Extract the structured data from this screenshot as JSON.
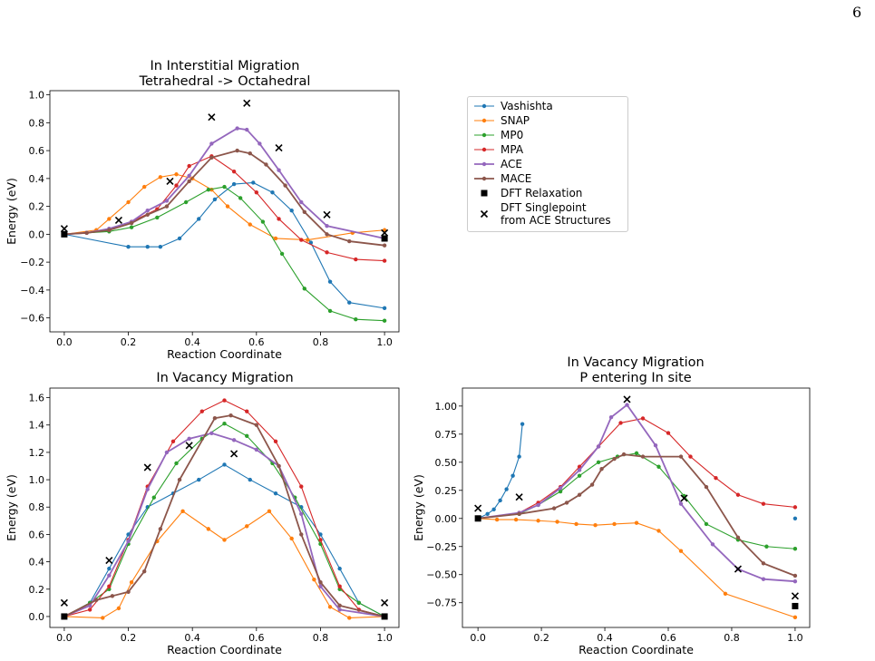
{
  "page_number": "6",
  "chart_data": [
    {
      "type": "line",
      "title": "In Interstitial Migration\nTetrahedral -> Octahedral",
      "xlabel": "Reaction Coordinate",
      "ylabel": "Energy (eV)",
      "xlim": [
        -0.045,
        1.045
      ],
      "ylim": [
        -0.7,
        1.03
      ],
      "xticks": [
        {
          "value": 0,
          "label": "0.0"
        },
        0.2,
        0.4,
        0.6,
        0.8,
        {
          "value": 1,
          "label": "1.0"
        }
      ],
      "yticks": [
        {
          "value": -0.6,
          "label": "−0.6"
        },
        {
          "value": -0.4,
          "label": "−0.4"
        },
        {
          "value": -0.2,
          "label": "−0.2"
        },
        {
          "value": 0,
          "label": "0.0"
        },
        0.2,
        0.4,
        0.6,
        0.8,
        {
          "value": 1,
          "label": "1.0"
        }
      ],
      "legend": "outside right",
      "series": [
        {
          "name": "Vashishta",
          "color": "#1f77b4",
          "marker": "dot",
          "x": [
            0,
            0.2,
            0.26,
            0.3,
            0.36,
            0.42,
            0.47,
            0.53,
            0.59,
            0.65,
            0.71,
            0.77,
            0.83,
            0.89,
            1.0
          ],
          "values": [
            0,
            -0.09,
            -0.09,
            -0.09,
            -0.03,
            0.11,
            0.25,
            0.36,
            0.37,
            0.3,
            0.17,
            -0.06,
            -0.34,
            -0.49,
            -0.53
          ]
        },
        {
          "name": "SNAP",
          "color": "#ff7f0e",
          "marker": "dot",
          "x": [
            0,
            0.1,
            0.14,
            0.2,
            0.25,
            0.3,
            0.35,
            0.4,
            0.46,
            0.51,
            0.58,
            0.66,
            0.76,
            0.9,
            1.0
          ],
          "values": [
            0,
            0.03,
            0.11,
            0.23,
            0.34,
            0.41,
            0.43,
            0.4,
            0.32,
            0.2,
            0.07,
            -0.03,
            -0.04,
            0.01,
            0.03
          ]
        },
        {
          "name": "MP0",
          "color": "#2ca02c",
          "marker": "dot",
          "x": [
            0,
            0.07,
            0.14,
            0.21,
            0.29,
            0.38,
            0.45,
            0.5,
            0.55,
            0.62,
            0.68,
            0.75,
            0.83,
            0.91,
            1.0
          ],
          "values": [
            0,
            0.01,
            0.02,
            0.05,
            0.12,
            0.23,
            0.32,
            0.34,
            0.26,
            0.09,
            -0.14,
            -0.39,
            -0.55,
            -0.61,
            -0.62
          ]
        },
        {
          "name": "MPA",
          "color": "#d62728",
          "marker": "dot",
          "x": [
            0,
            0.07,
            0.14,
            0.21,
            0.29,
            0.35,
            0.39,
            0.46,
            0.53,
            0.6,
            0.67,
            0.74,
            0.82,
            0.91,
            1.0
          ],
          "values": [
            0,
            0.01,
            0.03,
            0.09,
            0.18,
            0.35,
            0.49,
            0.56,
            0.45,
            0.3,
            0.11,
            -0.04,
            -0.13,
            -0.18,
            -0.19
          ]
        },
        {
          "name": "ACE",
          "color": "#9467bd",
          "marker": "dot",
          "linewidth": 1.8,
          "x": [
            0,
            0.07,
            0.14,
            0.21,
            0.26,
            0.32,
            0.39,
            0.46,
            0.54,
            0.57,
            0.61,
            0.67,
            0.74,
            0.82,
            1.0
          ],
          "values": [
            0,
            0.01,
            0.04,
            0.09,
            0.17,
            0.24,
            0.42,
            0.65,
            0.76,
            0.75,
            0.65,
            0.46,
            0.23,
            0.06,
            -0.03
          ]
        },
        {
          "name": "MACE",
          "color": "#8c564b",
          "marker": "dot",
          "linewidth": 1.8,
          "x": [
            0,
            0.07,
            0.14,
            0.21,
            0.26,
            0.32,
            0.39,
            0.46,
            0.54,
            0.58,
            0.63,
            0.69,
            0.75,
            0.82,
            0.89,
            1.0
          ],
          "values": [
            0,
            0.01,
            0.03,
            0.08,
            0.14,
            0.2,
            0.38,
            0.55,
            0.6,
            0.58,
            0.5,
            0.35,
            0.16,
            0.0,
            -0.05,
            -0.08
          ]
        },
        {
          "name": "DFT Relaxation",
          "color": "#000000",
          "marker": "square",
          "x": [
            0,
            1.0
          ],
          "values": [
            0,
            -0.03
          ]
        },
        {
          "name": "DFT Singlepoint\nfrom ACE Structures",
          "color": "#000000",
          "marker": "x",
          "x": [
            0,
            0.17,
            0.33,
            0.46,
            0.57,
            0.67,
            0.82,
            1.0
          ],
          "values": [
            0.04,
            0.1,
            0.38,
            0.84,
            0.94,
            0.62,
            0.14,
            0.01
          ]
        }
      ]
    },
    {
      "type": "line",
      "title": "In Vacancy Migration",
      "xlabel": "Reaction Coordinate",
      "ylabel": "Energy (eV)",
      "xlim": [
        -0.045,
        1.045
      ],
      "ylim": [
        -0.08,
        1.67
      ],
      "xticks": [
        {
          "value": 0,
          "label": "0.0"
        },
        0.2,
        0.4,
        0.6,
        0.8,
        {
          "value": 1,
          "label": "1.0"
        }
      ],
      "yticks": [
        {
          "value": 0,
          "label": "0.0"
        },
        0.2,
        0.4,
        0.6,
        0.8,
        {
          "value": 1,
          "label": "1.0"
        },
        1.2,
        1.4,
        1.6
      ],
      "series": [
        {
          "name": "Vashishta",
          "color": "#1f77b4",
          "marker": "dot",
          "x": [
            0,
            0.08,
            0.14,
            0.2,
            0.26,
            0.34,
            0.42,
            0.5,
            0.58,
            0.66,
            0.74,
            0.8,
            0.86,
            0.92,
            1.0
          ],
          "values": [
            0,
            0.1,
            0.35,
            0.6,
            0.8,
            0.9,
            1.0,
            1.11,
            1.0,
            0.9,
            0.8,
            0.6,
            0.35,
            0.1,
            0
          ]
        },
        {
          "name": "SNAP",
          "color": "#ff7f0e",
          "marker": "dot",
          "x": [
            0,
            0.12,
            0.17,
            0.21,
            0.29,
            0.37,
            0.45,
            0.5,
            0.57,
            0.64,
            0.71,
            0.78,
            0.83,
            0.89,
            1.0
          ],
          "values": [
            0,
            -0.01,
            0.06,
            0.25,
            0.55,
            0.77,
            0.64,
            0.56,
            0.66,
            0.77,
            0.57,
            0.27,
            0.07,
            -0.01,
            0
          ]
        },
        {
          "name": "MP0",
          "color": "#2ca02c",
          "marker": "dot",
          "x": [
            0,
            0.08,
            0.14,
            0.2,
            0.28,
            0.35,
            0.43,
            0.5,
            0.57,
            0.65,
            0.72,
            0.8,
            0.86,
            0.92,
            1.0
          ],
          "values": [
            0,
            0.1,
            0.2,
            0.53,
            0.87,
            1.12,
            1.3,
            1.41,
            1.32,
            1.12,
            0.87,
            0.53,
            0.2,
            0.1,
            0
          ]
        },
        {
          "name": "MPA",
          "color": "#d62728",
          "marker": "dot",
          "x": [
            0,
            0.08,
            0.14,
            0.2,
            0.26,
            0.34,
            0.43,
            0.5,
            0.57,
            0.66,
            0.74,
            0.8,
            0.86,
            0.92,
            1.0
          ],
          "values": [
            0,
            0.05,
            0.22,
            0.56,
            0.95,
            1.28,
            1.5,
            1.58,
            1.5,
            1.28,
            0.95,
            0.56,
            0.22,
            0.05,
            0
          ]
        },
        {
          "name": "ACE",
          "color": "#9467bd",
          "marker": "dot",
          "linewidth": 1.8,
          "x": [
            0,
            0.08,
            0.14,
            0.2,
            0.26,
            0.32,
            0.39,
            0.46,
            0.53,
            0.6,
            0.67,
            0.74,
            0.8,
            0.86,
            1.0
          ],
          "values": [
            0,
            0.08,
            0.3,
            0.55,
            0.93,
            1.2,
            1.3,
            1.34,
            1.29,
            1.22,
            1.1,
            0.75,
            0.22,
            0.05,
            0
          ]
        },
        {
          "name": "MACE",
          "color": "#8c564b",
          "marker": "dot",
          "linewidth": 1.8,
          "x": [
            0,
            0.1,
            0.15,
            0.2,
            0.25,
            0.3,
            0.36,
            0.47,
            0.52,
            0.6,
            0.67,
            0.74,
            0.8,
            0.86,
            1.0
          ],
          "values": [
            0,
            0.12,
            0.15,
            0.18,
            0.33,
            0.64,
            1.0,
            1.45,
            1.47,
            1.4,
            1.1,
            0.6,
            0.25,
            0.08,
            0
          ]
        },
        {
          "name": "DFT Relaxation",
          "color": "#000000",
          "marker": "square",
          "x": [
            0,
            1.0
          ],
          "values": [
            0,
            0
          ]
        },
        {
          "name": "DFT Singlepoint\nfrom ACE Structures",
          "color": "#000000",
          "marker": "x",
          "x": [
            0,
            0.14,
            0.26,
            0.39,
            0.53,
            1.0
          ],
          "values": [
            0.1,
            0.41,
            1.09,
            1.25,
            1.19,
            0.1
          ]
        }
      ]
    },
    {
      "type": "line",
      "title": "In Vacancy Migration\nP entering In site",
      "xlabel": "Reaction Coordinate",
      "ylabel": "Energy (eV)",
      "xlim": [
        -0.049,
        1.046
      ],
      "ylim": [
        -0.97,
        1.16
      ],
      "xticks": [
        {
          "value": 0,
          "label": "0.0"
        },
        0.2,
        0.4,
        0.6,
        0.8,
        {
          "value": 1,
          "label": "1.0"
        }
      ],
      "yticks": [
        {
          "value": -0.75,
          "label": "−0.75"
        },
        {
          "value": -0.5,
          "label": "−0.50"
        },
        {
          "value": -0.25,
          "label": "−0.25"
        },
        {
          "value": 0,
          "label": "0.00"
        },
        0.25,
        {
          "value": 0.5,
          "label": "0.50"
        },
        0.75,
        {
          "value": 1,
          "label": "1.00"
        }
      ],
      "series": [
        {
          "name": "Vashishta",
          "color": "#1f77b4",
          "marker": "dot",
          "x": [
            0,
            0.03,
            0.05,
            0.07,
            0.09,
            0.11,
            0.13,
            0.14,
            0.57,
            1.0
          ],
          "values": [
            0,
            0.04,
            0.08,
            0.16,
            0.26,
            0.38,
            0.55,
            0.84,
            null,
            0.0
          ]
        },
        {
          "name": "SNAP",
          "color": "#ff7f0e",
          "marker": "dot",
          "x": [
            0,
            0.06,
            0.12,
            0.19,
            0.25,
            0.31,
            0.37,
            0.43,
            0.5,
            0.57,
            0.64,
            0.78,
            1.0
          ],
          "values": [
            0,
            -0.01,
            -0.01,
            -0.02,
            -0.03,
            -0.05,
            -0.06,
            -0.05,
            -0.04,
            -0.11,
            -0.29,
            -0.67,
            -0.88
          ]
        },
        {
          "name": "MP0",
          "color": "#2ca02c",
          "marker": "dot",
          "x": [
            0,
            0.13,
            0.19,
            0.26,
            0.32,
            0.38,
            0.44,
            0.5,
            0.57,
            0.65,
            0.72,
            0.82,
            0.91,
            1.0
          ],
          "values": [
            0,
            0.04,
            0.12,
            0.24,
            0.38,
            0.5,
            0.55,
            0.58,
            0.46,
            0.2,
            -0.05,
            -0.19,
            -0.25,
            -0.27
          ]
        },
        {
          "name": "MPA",
          "color": "#d62728",
          "marker": "dot",
          "x": [
            0,
            0.13,
            0.19,
            0.26,
            0.32,
            0.38,
            0.45,
            0.52,
            0.6,
            0.67,
            0.75,
            0.82,
            0.9,
            1.0
          ],
          "values": [
            0,
            0.05,
            0.14,
            0.28,
            0.46,
            0.64,
            0.85,
            0.89,
            0.76,
            0.55,
            0.36,
            0.21,
            0.13,
            0.1
          ]
        },
        {
          "name": "ACE",
          "color": "#9467bd",
          "marker": "dot",
          "linewidth": 1.8,
          "x": [
            0,
            0.13,
            0.19,
            0.26,
            0.32,
            0.38,
            0.42,
            0.47,
            0.56,
            0.64,
            0.74,
            0.82,
            0.9,
            1.0
          ],
          "values": [
            0,
            0.05,
            0.12,
            0.27,
            0.43,
            0.64,
            0.9,
            1.01,
            0.65,
            0.13,
            -0.23,
            -0.45,
            -0.54,
            -0.56
          ]
        },
        {
          "name": "MACE",
          "color": "#8c564b",
          "marker": "dot",
          "linewidth": 1.8,
          "x": [
            0,
            0.13,
            0.24,
            0.28,
            0.32,
            0.36,
            0.39,
            0.43,
            0.46,
            0.52,
            0.64,
            0.72,
            0.82,
            0.9,
            1.0
          ],
          "values": [
            0,
            0.04,
            0.09,
            0.14,
            0.21,
            0.3,
            0.44,
            0.53,
            0.57,
            0.55,
            0.55,
            0.28,
            -0.17,
            -0.4,
            -0.51
          ]
        },
        {
          "name": "DFT Relaxation",
          "color": "#000000",
          "marker": "square",
          "x": [
            0,
            1.0
          ],
          "values": [
            0,
            -0.78
          ]
        },
        {
          "name": "DFT Singlepoint\nfrom ACE Structures",
          "color": "#000000",
          "marker": "x",
          "x": [
            0,
            0.13,
            0.47,
            0.65,
            0.82,
            1.0
          ],
          "values": [
            0.09,
            0.19,
            1.06,
            0.18,
            -0.45,
            -0.69
          ]
        }
      ]
    }
  ]
}
